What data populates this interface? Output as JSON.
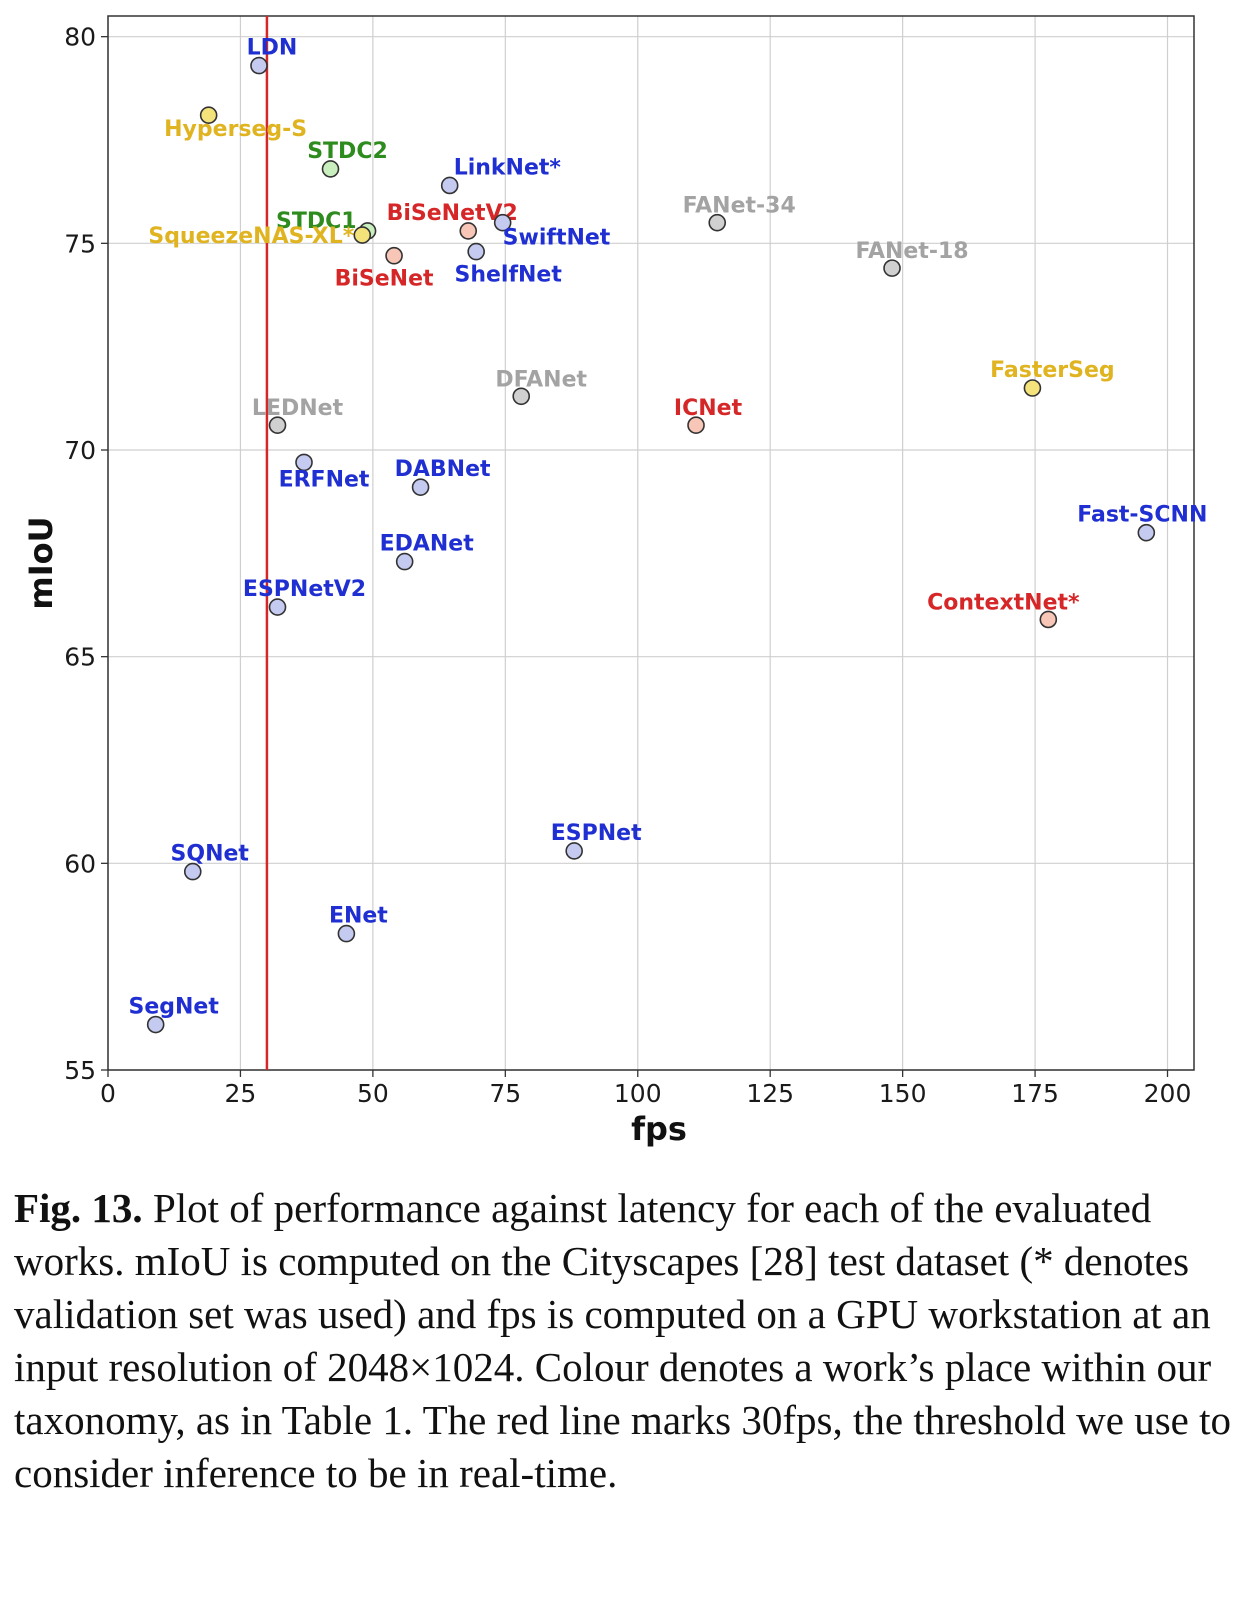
{
  "chart_data": {
    "type": "scatter",
    "xlabel": "fps",
    "ylabel": "mIoU",
    "xlim": [
      0,
      205
    ],
    "ylim": [
      55,
      80.5
    ],
    "xticks": [
      0,
      25,
      50,
      75,
      100,
      125,
      150,
      175,
      200
    ],
    "yticks": [
      55,
      60,
      65,
      70,
      75,
      80
    ],
    "grid": true,
    "threshold": {
      "x": 30,
      "color": "#d62728"
    },
    "palette": {
      "blue": {
        "text": "#1f2fd1",
        "fill": "#c5cbf0"
      },
      "red": {
        "text": "#d62728",
        "fill": "#f7c6b6"
      },
      "green": {
        "text": "#2e8b1e",
        "fill": "#c9efbf"
      },
      "gold": {
        "text": "#e0b420",
        "fill": "#f4e27a"
      },
      "gray": {
        "text": "#a3a3a3",
        "fill": "#d0d0d0"
      }
    },
    "points": [
      {
        "name": "LDN",
        "x": 28.5,
        "y": 79.3,
        "color": "blue"
      },
      {
        "name": "Hyperseg-S",
        "x": 19,
        "y": 78.1,
        "color": "gold"
      },
      {
        "name": "STDC2",
        "x": 42,
        "y": 76.8,
        "color": "green"
      },
      {
        "name": "LinkNet*",
        "x": 64.5,
        "y": 76.4,
        "color": "blue"
      },
      {
        "name": "STDC1",
        "x": 49,
        "y": 75.3,
        "color": "green"
      },
      {
        "name": "SqueezeNAS-XL*",
        "x": 48,
        "y": 75.2,
        "color": "gold"
      },
      {
        "name": "BiSeNetV2",
        "x": 68,
        "y": 75.3,
        "color": "red"
      },
      {
        "name": "SwiftNet",
        "x": 74.5,
        "y": 75.5,
        "color": "blue"
      },
      {
        "name": "BiSeNet",
        "x": 54,
        "y": 74.7,
        "color": "red"
      },
      {
        "name": "ShelfNet",
        "x": 69.5,
        "y": 74.8,
        "color": "blue"
      },
      {
        "name": "FANet-34",
        "x": 115,
        "y": 75.5,
        "color": "gray"
      },
      {
        "name": "FANet-18",
        "x": 148,
        "y": 74.4,
        "color": "gray"
      },
      {
        "name": "DFANet",
        "x": 78,
        "y": 71.3,
        "color": "gray"
      },
      {
        "name": "LEDNet",
        "x": 32,
        "y": 70.6,
        "color": "gray"
      },
      {
        "name": "ICNet",
        "x": 111,
        "y": 70.6,
        "color": "red"
      },
      {
        "name": "FasterSeg",
        "x": 174.5,
        "y": 71.5,
        "color": "gold"
      },
      {
        "name": "ERFNet",
        "x": 37,
        "y": 69.7,
        "color": "blue"
      },
      {
        "name": "DABNet",
        "x": 59,
        "y": 69.1,
        "color": "blue"
      },
      {
        "name": "Fast-SCNN",
        "x": 196,
        "y": 68.0,
        "color": "blue"
      },
      {
        "name": "EDANet",
        "x": 56,
        "y": 67.3,
        "color": "blue"
      },
      {
        "name": "ESPNetV2",
        "x": 32,
        "y": 66.2,
        "color": "blue"
      },
      {
        "name": "ContextNet*",
        "x": 177.5,
        "y": 65.9,
        "color": "red"
      },
      {
        "name": "ESPNet",
        "x": 88,
        "y": 60.3,
        "color": "blue"
      },
      {
        "name": "SQNet",
        "x": 16,
        "y": 59.8,
        "color": "blue"
      },
      {
        "name": "ENet",
        "x": 45,
        "y": 58.3,
        "color": "blue"
      },
      {
        "name": "SegNet",
        "x": 9,
        "y": 56.1,
        "color": "blue"
      }
    ]
  },
  "caption": {
    "label": "Fig. 13.",
    "text": " Plot of performance against latency for each of the evaluated works. mIoU is computed on the Cityscapes [28] test dataset (* denotes validation set was used) and fps is computed on a GPU workstation at an input resolution of 2048×1024. Colour denotes a work’s place within our taxonomy, as in Table 1. The red line marks 30fps, the threshold we use to consider inference to be in real-time."
  }
}
